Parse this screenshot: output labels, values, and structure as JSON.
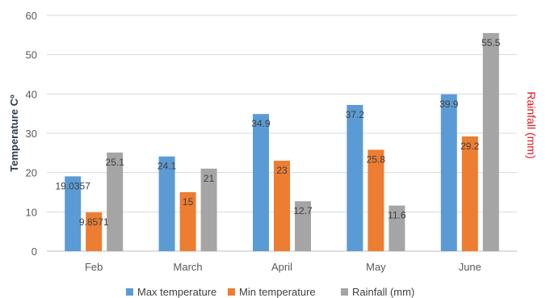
{
  "chart_data": {
    "type": "bar",
    "categories": [
      "Feb",
      "March",
      "April",
      "May",
      "June"
    ],
    "series": [
      {
        "name": "Max temperature",
        "values": [
          19.0357,
          24.1,
          34.9,
          37.2,
          39.9
        ],
        "labels": [
          "19.0357",
          "24.1",
          "34.9",
          "37.2",
          "39.9"
        ],
        "color": "#5b9bd5"
      },
      {
        "name": "Min temperature",
        "values": [
          9.8571,
          15,
          23,
          25.8,
          29.2
        ],
        "labels": [
          "9.8571",
          "15",
          "23",
          "25.8",
          "29.2"
        ],
        "color": "#ed7d31"
      },
      {
        "name": "Rainfall (mm)",
        "values": [
          25.1,
          21,
          12.7,
          11.6,
          55.5
        ],
        "labels": [
          "25.1",
          "21",
          "12.7",
          "11.6",
          "55.5"
        ],
        "color": "#a5a5a5"
      }
    ],
    "ylabel": "Temperature Cº",
    "y2label": "Rainfall (mm)",
    "ylim": [
      0,
      60
    ],
    "yticks": [
      "0",
      "10",
      "20",
      "30",
      "40",
      "50",
      "60"
    ],
    "grid": true,
    "legend_position": "bottom"
  }
}
